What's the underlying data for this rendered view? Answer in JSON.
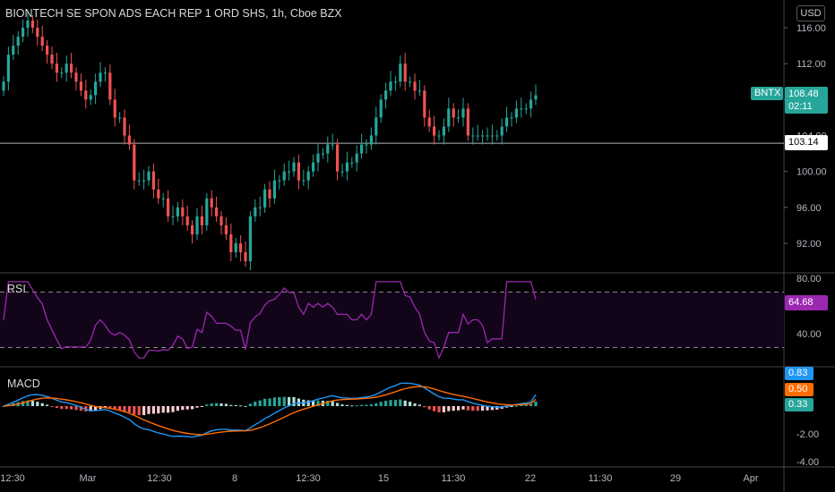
{
  "title": "BIONTECH SE SPON ADS EACH REP 1 ORD SHS, 1h, Cboe BZX",
  "currency": "USD",
  "ticker_tag": "BNTX",
  "last_price": "108.48",
  "countdown": "02:11",
  "horizontal_line_value": "103.14",
  "rsi_label": "RSI",
  "rsi_value": "64.68",
  "macd_label": "MACD",
  "macd_values": [
    "0.83",
    "0.50",
    "0.33"
  ],
  "colors": {
    "up": "#26a69a",
    "down": "#ef5350",
    "rsi": "#9c27b0",
    "macd": "#2196f3",
    "signal": "#ff6d00"
  },
  "chart_data": [
    {
      "type": "candlestick",
      "title": "BIONTECH SE SPON ADS EACH REP 1 ORD SHS, 1h, Cboe BZX",
      "ylim": [
        88,
        118
      ],
      "y_ticks": [
        "116.00",
        "112.00",
        "108.00",
        "104.00",
        "100.00",
        "96.00",
        "92.00"
      ],
      "x_ticks": [
        "12:30",
        "Mar",
        "12:30",
        "8",
        "12:30",
        "15",
        "11:30",
        "22",
        "11:30",
        "29",
        "Apr"
      ],
      "close": [
        110,
        113,
        114,
        115,
        116,
        116.8,
        116,
        115,
        114,
        113,
        112,
        111,
        111,
        112,
        111,
        110,
        109,
        108,
        108.5,
        110,
        111,
        111,
        108,
        106,
        106,
        104,
        103,
        99,
        99,
        99,
        100,
        98,
        97,
        97,
        95,
        95,
        96,
        95,
        94,
        93,
        95,
        94,
        97,
        96,
        95,
        94,
        93,
        91,
        92,
        91,
        90,
        95,
        96,
        96,
        98,
        97,
        99,
        99,
        100,
        100,
        101,
        99,
        99,
        100,
        101,
        102,
        102,
        103,
        103,
        100,
        100,
        101,
        101,
        102,
        103,
        103,
        104,
        106,
        108,
        109,
        110,
        110,
        112,
        110,
        110,
        109,
        109,
        106,
        105,
        104,
        104,
        105,
        107,
        106,
        106,
        107,
        104,
        104,
        104,
        104,
        104,
        104,
        104,
        105,
        106,
        106,
        107,
        107,
        107,
        108,
        108.48
      ],
      "rsi": {
        "ylim": [
          20,
          80
        ],
        "ticks": [
          "80.00",
          "60.00",
          "40.00"
        ],
        "bands": [
          30,
          70
        ],
        "last": 64.68
      },
      "macd": {
        "ylim": [
          -4.2,
          2.4
        ],
        "ticks": [
          "-2.00",
          "-4.00"
        ],
        "macd_last": 0.83,
        "signal_last": 0.5,
        "hist_last": 0.33
      }
    }
  ]
}
